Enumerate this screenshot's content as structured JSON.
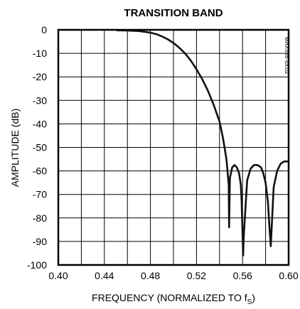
{
  "chart_data": {
    "type": "line",
    "title": "TRANSITION BAND",
    "xlabel": "FREQUENCY (NORMALIZED TO f",
    "xlabel_subscript": "S",
    "xlabel_suffix": ")",
    "ylabel": "AMPLITUDE (dB)",
    "xlim": [
      0.4,
      0.6
    ],
    "ylim": [
      -100,
      0
    ],
    "x_ticks": [
      "0.40",
      "0.44",
      "0.48",
      "0.52",
      "0.56",
      "0.60"
    ],
    "x_tick_values": [
      0.4,
      0.44,
      0.48,
      0.52,
      0.56,
      0.6
    ],
    "y_ticks": [
      "0",
      "-10",
      "-20",
      "-30",
      "-40",
      "-50",
      "-60",
      "-70",
      "-80",
      "-90",
      "-100"
    ],
    "y_tick_values": [
      0,
      -10,
      -20,
      -30,
      -40,
      -50,
      -60,
      -70,
      -80,
      -90,
      -100
    ],
    "grid": true,
    "figure_code": "MAX556 toc02",
    "series": [
      {
        "x": [
          0.451,
          0.46,
          0.47,
          0.48,
          0.485,
          0.49,
          0.495,
          0.5,
          0.505,
          0.51,
          0.515,
          0.52,
          0.525,
          0.53,
          0.535,
          0.54,
          0.543,
          0.546,
          0.548,
          0.5483,
          0.549,
          0.551,
          0.553,
          0.555,
          0.557,
          0.5585,
          0.5592,
          0.56,
          0.5605,
          0.561,
          0.564,
          0.567,
          0.57,
          0.573,
          0.576,
          0.578,
          0.58,
          0.582,
          0.5835,
          0.5845,
          0.5855,
          0.587,
          0.59,
          0.593,
          0.596,
          0.6
        ],
        "y": [
          -0.2,
          -0.3,
          -0.5,
          -1.2,
          -1.8,
          -2.8,
          -4.0,
          -5.6,
          -7.6,
          -10.0,
          -13.0,
          -16.8,
          -21.0,
          -26.0,
          -32.0,
          -39.0,
          -46.0,
          -55.0,
          -66.0,
          -84.0,
          -63.0,
          -58.5,
          -57.5,
          -58.5,
          -61.0,
          -66.0,
          -73.0,
          -87.0,
          -96.0,
          -88.0,
          -64.0,
          -59.0,
          -57.5,
          -57.5,
          -58.5,
          -61.0,
          -65.0,
          -73.0,
          -85.0,
          -92.0,
          -82.0,
          -67.0,
          -60.0,
          -57.0,
          -56.0,
          -56.0
        ]
      }
    ]
  }
}
